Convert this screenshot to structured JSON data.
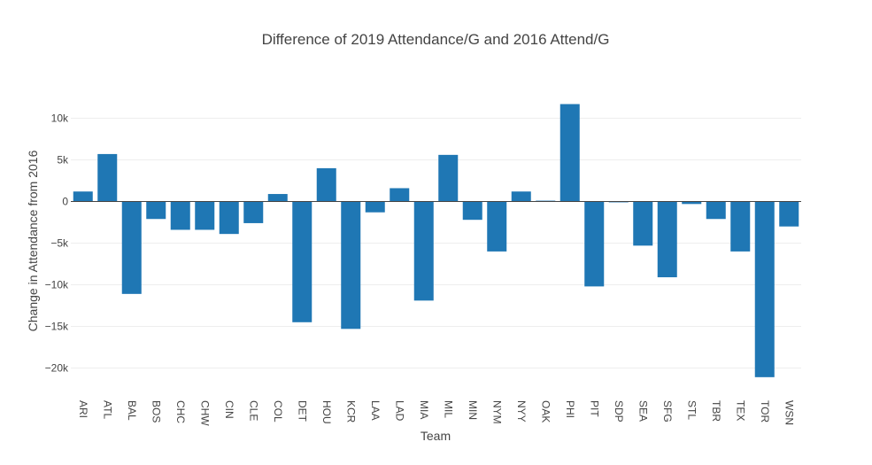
{
  "chart_data": {
    "type": "bar",
    "title": "Difference of 2019 Attendance/G and 2016 Attend/G",
    "xlabel": "Team",
    "ylabel": "Change in Attendance from 2016",
    "ylim": [
      -22500,
      14000
    ],
    "yticks": [
      10000,
      5000,
      0,
      -5000,
      -10000,
      -15000,
      -20000
    ],
    "ytick_labels": [
      "10k",
      "5k",
      "0",
      "−5k",
      "−10k",
      "−15k",
      "−20k"
    ],
    "grid": true,
    "bar_color": "#1f77b4",
    "categories": [
      "ARI",
      "ATL",
      "BAL",
      "BOS",
      "CHC",
      "CHW",
      "CIN",
      "CLE",
      "COL",
      "DET",
      "HOU",
      "KCR",
      "LAA",
      "LAD",
      "MIA",
      "MIL",
      "MIN",
      "NYM",
      "NYY",
      "OAK",
      "PHI",
      "PIT",
      "SDP",
      "SEA",
      "SFG",
      "STL",
      "TBR",
      "TEX",
      "TOR",
      "WSN"
    ],
    "values": [
      1200,
      5700,
      -11100,
      -2100,
      -3400,
      -3400,
      -3900,
      -2600,
      900,
      -14500,
      4000,
      -15300,
      -1300,
      1600,
      -11900,
      5600,
      -2200,
      -6000,
      1200,
      100,
      11700,
      -10200,
      -100,
      -5300,
      -9100,
      -300,
      -2100,
      -6000,
      -21100,
      -3000
    ]
  }
}
